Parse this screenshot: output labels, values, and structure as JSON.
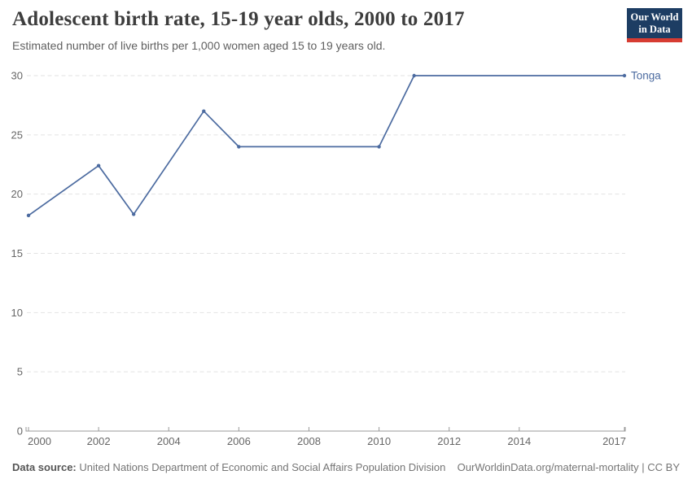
{
  "header": {
    "title": "Adolescent birth rate, 15-19 year olds, 2000 to 2017",
    "subtitle": "Estimated number of live births per 1,000 women aged 15 to 19 years old.",
    "logo": {
      "line1": "Our World",
      "line2": "in Data",
      "bg_color": "#1d3d63",
      "accent_color": "#d73c32"
    }
  },
  "chart_data": {
    "type": "line",
    "title": "Adolescent birth rate, 15-19 year olds, 2000 to 2017",
    "subtitle": "Estimated number of live births per 1,000 women aged 15 to 19 years old.",
    "xlabel": "",
    "ylabel": "",
    "xlim": [
      2000,
      2017
    ],
    "ylim": [
      0,
      30
    ],
    "x_ticks": [
      2000,
      2002,
      2004,
      2006,
      2008,
      2010,
      2012,
      2014,
      2017
    ],
    "y_ticks": [
      0,
      5,
      10,
      15,
      20,
      25,
      30
    ],
    "grid": "horizontal-dashed",
    "legend_position": "line-end",
    "series": [
      {
        "name": "Tonga",
        "color": "#4c6ba0",
        "years": [
          2000,
          2002,
          2003,
          2005,
          2006,
          2010,
          2011,
          2017
        ],
        "values": [
          18.2,
          22.4,
          18.3,
          27,
          24,
          24,
          30,
          30
        ]
      }
    ]
  },
  "colors": {
    "axis_text": "#666666",
    "axis_line": "#9a9a9a",
    "grid_line": "#e2e2e2"
  },
  "footer": {
    "source_label": "Data source:",
    "source_text": " United Nations Department of Economic and Social Affairs Population Division",
    "link_text": "OurWorldinData.org/maternal-mortality | CC BY"
  }
}
